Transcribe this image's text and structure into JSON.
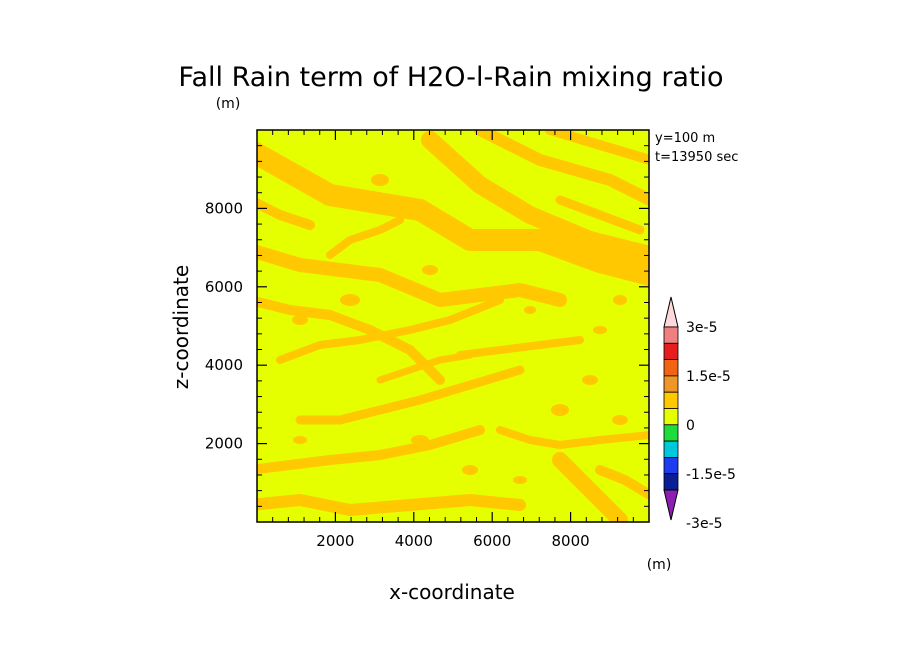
{
  "chart_data": {
    "type": "heatmap",
    "title": "Fall Rain term of H2O-l-Rain mixing ratio",
    "unit_label": "(m)",
    "xlabel": "x-coordinate",
    "ylabel": "z-coordinate",
    "xlim": [
      0,
      10000
    ],
    "ylim": [
      0,
      10000
    ],
    "x_ticks": [
      2000,
      4000,
      6000,
      8000
    ],
    "y_ticks": [
      2000,
      4000,
      6000,
      8000
    ],
    "x_tick_labels": [
      "2000",
      "4000",
      "6000",
      "8000"
    ],
    "y_tick_labels": [
      "2000",
      "4000",
      "6000",
      "8000"
    ],
    "annotations": [
      "y=100 m",
      "t=13950 sec"
    ],
    "legend_placement": "right",
    "colorbar": {
      "labels": [
        "3e-5",
        "1.5e-5",
        "0",
        "-1.5e-5",
        "-3e-5"
      ],
      "unit_label": "(m)",
      "colors_top_to_bottom": [
        "#ffd8dc",
        "#f08080",
        "#e61e1e",
        "#f06414",
        "#f09628",
        "#ffc800",
        "#e6ff00",
        "#1edc3c",
        "#00c8dc",
        "#1e3cf0",
        "#0a1e96",
        "#8c1eb4"
      ]
    },
    "fill_colors": {
      "level_zero_low": "#e6ff00",
      "level_zero_high": "#ffc800"
    },
    "grid": false
  }
}
